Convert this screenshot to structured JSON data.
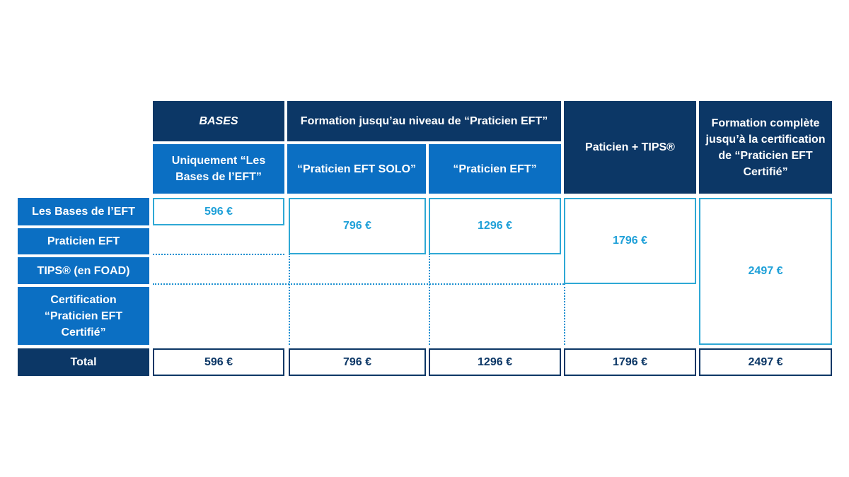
{
  "header": {
    "bases": "BASES",
    "formation_praticien": "Formation jusqu’au niveau de “Praticien EFT”",
    "praticien_tips": "Paticien + TIPS®",
    "formation_complete": "Formation complète jusqu’à la certification de “Praticien EFT Certifié”",
    "uniquement_bases": "Uniquement “Les Bases de l’EFT”",
    "praticien_solo": "“Praticien EFT SOLO”",
    "praticien_eft": "“Praticien EFT”"
  },
  "rows": {
    "bases": "Les Bases de l’EFT",
    "praticien": "Praticien EFT",
    "tips": "TIPS® (en FOAD)",
    "certification": "Certification “Praticien EFT Certifié”",
    "total": "Total"
  },
  "prices": {
    "bases": "596 €",
    "solo": "796 €",
    "praticien": "1296 €",
    "tips": "1796 €",
    "complete": "2497 €"
  },
  "totals": [
    "596 €",
    "796 €",
    "1296 €",
    "1796 €",
    "2497 €"
  ],
  "colors": {
    "navy": "#0c3766",
    "blue": "#0b6fc3",
    "cyan": "#2ea8d5"
  }
}
